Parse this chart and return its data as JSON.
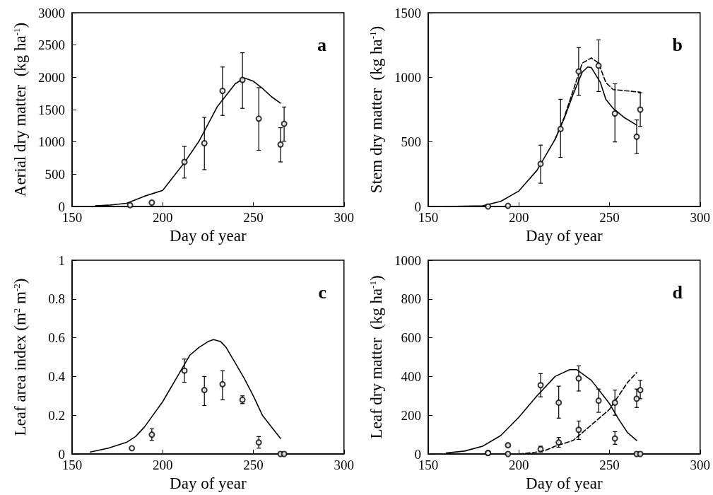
{
  "chart_data": [
    {
      "type": "scatter",
      "xlabel": "Day of year",
      "ylabel": "Aerial dry matter  (kg ha$^{-1}$)",
      "annotations": [
        "a"
      ],
      "xlim": [
        150,
        300
      ],
      "xticks": [
        150,
        200,
        250,
        300
      ],
      "ylim": [
        0,
        3000
      ],
      "yticks": [
        0,
        500,
        1000,
        1500,
        2000,
        2500,
        3000
      ],
      "grid": false,
      "series": [
        {
          "marker": "circle",
          "color": "#000000",
          "x": [
            182,
            194,
            212,
            223,
            233,
            244,
            253,
            265,
            267
          ],
          "values": [
            20,
            60,
            690,
            980,
            1790,
            1960,
            1360,
            960,
            1280
          ],
          "errors": [
            null,
            null,
            [
              440,
              930
            ],
            [
              570,
              1380
            ],
            [
              1410,
              2160
            ],
            [
              1520,
              2380
            ],
            [
              870,
              1840
            ],
            [
              690,
              1220
            ],
            [
              1010,
              1540
            ]
          ]
        },
        {
          "type": "line",
          "marker": "none",
          "line_style": "solid",
          "color": "#000000",
          "x": [
            163,
            170,
            180,
            190,
            200,
            212,
            220,
            230,
            240,
            245,
            250,
            255,
            260,
            265
          ],
          "values": [
            10,
            20,
            50,
            160,
            250,
            680,
            1010,
            1540,
            1900,
            1990,
            1940,
            1830,
            1700,
            1600
          ]
        }
      ]
    },
    {
      "type": "scatter",
      "xlabel": "Day of year",
      "ylabel": "Stem dry matter  (kg ha$^{-1}$)",
      "annotations": [
        "b"
      ],
      "xlim": [
        150,
        300
      ],
      "xticks": [
        150,
        200,
        250,
        300
      ],
      "ylim": [
        0,
        1500
      ],
      "yticks": [
        0,
        500,
        1000,
        1500
      ],
      "grid": false,
      "series": [
        {
          "marker": "circle",
          "color": "#000000",
          "x": [
            183,
            194,
            212,
            223,
            233,
            244,
            253,
            265,
            267
          ],
          "values": [
            0,
            5,
            330,
            600,
            1045,
            1090,
            720,
            540,
            750
          ],
          "errors": [
            null,
            null,
            [
              180,
              475
            ],
            [
              380,
              830
            ],
            [
              860,
              1230
            ],
            [
              890,
              1290
            ],
            [
              500,
              950
            ],
            [
              410,
              670
            ],
            [
              620,
              880
            ]
          ]
        },
        {
          "type": "line",
          "marker": "none",
          "line_style": "solid",
          "color": "#000000",
          "x": [
            160,
            180,
            190,
            200,
            210,
            220,
            225,
            230,
            235,
            238,
            240,
            245,
            248,
            252,
            258,
            265
          ],
          "values": [
            0,
            5,
            40,
            120,
            280,
            520,
            680,
            870,
            1040,
            1080,
            1075,
            960,
            830,
            760,
            690,
            630
          ]
        },
        {
          "type": "line",
          "marker": "none",
          "line_style": "dashed",
          "color": "#000000",
          "x": [
            220,
            225,
            230,
            235,
            240,
            244,
            248,
            252,
            267
          ],
          "values": [
            520,
            690,
            900,
            1110,
            1150,
            1110,
            960,
            905,
            885
          ]
        }
      ]
    },
    {
      "type": "scatter",
      "xlabel": "Day of year",
      "ylabel": "Leaf area index (m$^{2}$ m$^{-2}$)",
      "annotations": [
        "c"
      ],
      "xlim": [
        150,
        300
      ],
      "xticks": [
        150,
        200,
        250,
        300
      ],
      "ylim": [
        0,
        1
      ],
      "yticks": [
        0,
        0.2,
        0.4,
        0.6,
        0.8,
        1
      ],
      "grid": false,
      "series": [
        {
          "marker": "circle",
          "color": "#000000",
          "x": [
            183,
            194,
            212,
            223,
            233,
            244,
            253,
            265,
            267
          ],
          "values": [
            0.03,
            0.1,
            0.43,
            0.33,
            0.36,
            0.28,
            0.06,
            0,
            0
          ],
          "errors": [
            null,
            [
              0.07,
              0.13
            ],
            [
              0.37,
              0.49
            ],
            [
              0.25,
              0.4
            ],
            [
              0.28,
              0.43
            ],
            [
              0.26,
              0.3
            ],
            [
              0.03,
              0.09
            ],
            null,
            null
          ]
        },
        {
          "type": "line",
          "marker": "none",
          "line_style": "solid",
          "color": "#000000",
          "x": [
            160,
            170,
            180,
            185,
            190,
            200,
            210,
            215,
            220,
            225,
            228,
            232,
            235,
            240,
            245,
            250,
            255,
            260,
            265
          ],
          "values": [
            0.01,
            0.03,
            0.06,
            0.09,
            0.14,
            0.27,
            0.43,
            0.51,
            0.55,
            0.58,
            0.59,
            0.58,
            0.55,
            0.47,
            0.39,
            0.3,
            0.2,
            0.14,
            0.08
          ]
        }
      ]
    },
    {
      "type": "scatter",
      "xlabel": "Day of year",
      "ylabel": "Leaf dry matter  (kg ha$^{-1}$)",
      "annotations": [
        "d"
      ],
      "xlim": [
        150,
        300
      ],
      "xticks": [
        150,
        200,
        250,
        300
      ],
      "ylim": [
        0,
        1000
      ],
      "yticks": [
        0,
        200,
        400,
        600,
        800,
        1000
      ],
      "grid": false,
      "series": [
        {
          "marker": "circle",
          "color": "#000000",
          "x": [
            183,
            194,
            212,
            222,
            233,
            253,
            265,
            267
          ],
          "values": [
            5,
            45,
            355,
            265,
            390,
            80,
            0,
            0
          ],
          "errors": [
            null,
            [
              40,
              50
            ],
            [
              295,
              415
            ],
            [
              185,
              350
            ],
            [
              325,
              455
            ],
            [
              50,
              115
            ],
            null,
            null
          ]
        },
        {
          "marker": "circle",
          "color": "#000000",
          "x": [
            183,
            194,
            212,
            222,
            233,
            244,
            253,
            265,
            267
          ],
          "values": [
            5,
            0,
            25,
            60,
            125,
            275,
            265,
            285,
            330
          ],
          "errors": [
            null,
            null,
            [
              10,
              40
            ],
            [
              35,
              85
            ],
            [
              75,
              170
            ],
            [
              215,
              335
            ],
            [
              200,
              330
            ],
            [
              240,
              335
            ],
            [
              285,
              380
            ]
          ]
        },
        {
          "type": "line",
          "marker": "none",
          "line_style": "solid",
          "color": "#000000",
          "x": [
            160,
            170,
            180,
            190,
            200,
            210,
            220,
            228,
            232,
            240,
            245,
            250,
            255,
            260,
            265
          ],
          "values": [
            5,
            15,
            40,
            95,
            190,
            300,
            400,
            435,
            435,
            380,
            320,
            260,
            180,
            110,
            70
          ]
        },
        {
          "type": "line",
          "marker": "none",
          "line_style": "dashed",
          "color": "#000000",
          "x": [
            200,
            210,
            215,
            220,
            230,
            240,
            250,
            255,
            260,
            265
          ],
          "values": [
            0,
            10,
            20,
            40,
            70,
            150,
            230,
            300,
            370,
            420
          ]
        }
      ]
    }
  ]
}
